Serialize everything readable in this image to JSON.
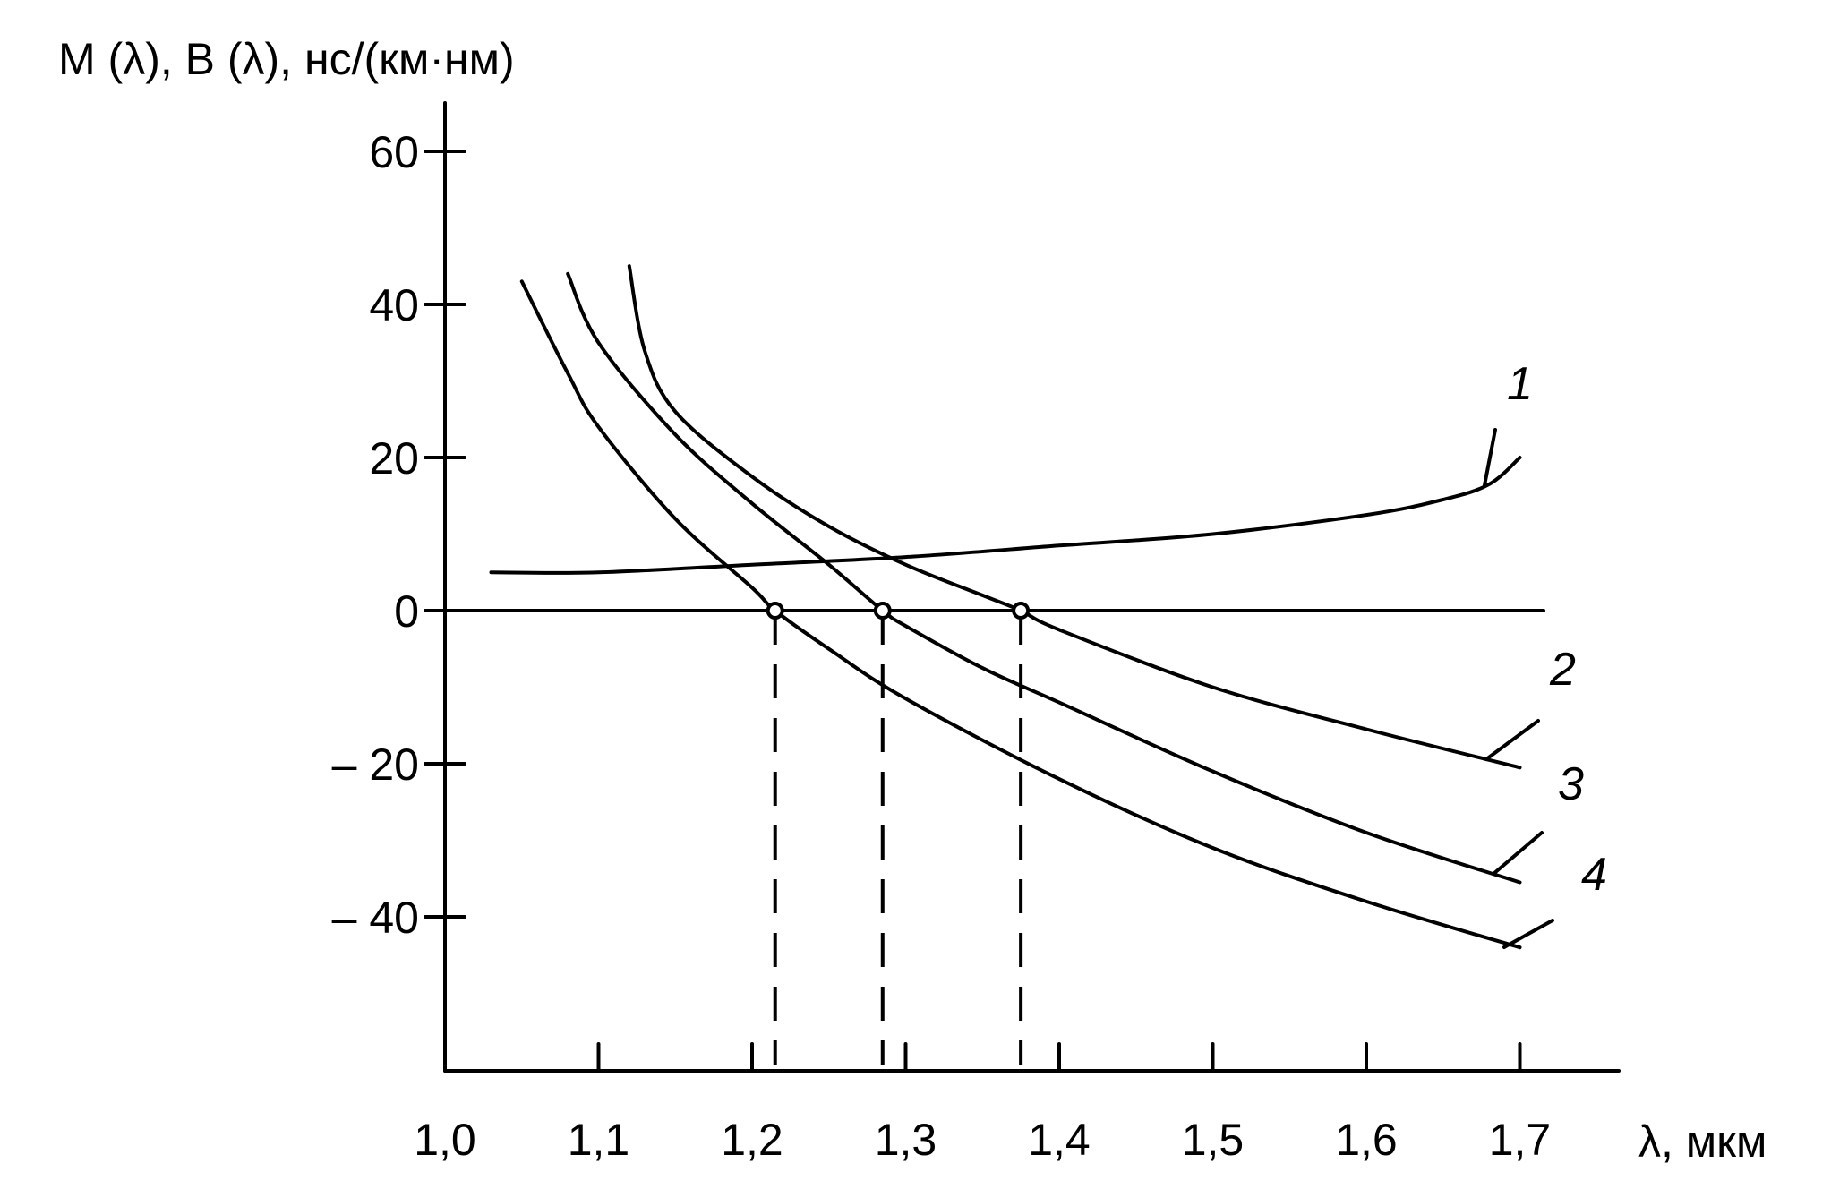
{
  "chart_data": {
    "type": "line",
    "title": "",
    "ylabel": "M (λ), B (λ), нс/(км·нм)",
    "xlabel": "λ, мкм",
    "xlim": [
      1.0,
      1.7
    ],
    "ylim": [
      -60,
      65
    ],
    "xticks": [
      1.0,
      1.1,
      1.2,
      1.3,
      1.4,
      1.5,
      1.6,
      1.7
    ],
    "xtick_labels": [
      "1,0",
      "1,1",
      "1,2",
      "1,3",
      "1,4",
      "1,5",
      "1,6",
      "1,7"
    ],
    "yticks": [
      60,
      40,
      20,
      0,
      -20,
      -40
    ],
    "ytick_labels": [
      "60",
      "40",
      "20",
      "0",
      "– 20",
      "– 40"
    ],
    "grid": false,
    "series": [
      {
        "name": "1",
        "x": [
          1.03,
          1.1,
          1.2,
          1.3,
          1.4,
          1.5,
          1.6,
          1.65,
          1.68,
          1.7
        ],
        "y": [
          5,
          5,
          6,
          7,
          8.5,
          10,
          12.5,
          14.5,
          16.5,
          20
        ]
      },
      {
        "name": "2",
        "x": [
          1.12,
          1.13,
          1.15,
          1.2,
          1.25,
          1.3,
          1.35,
          1.375,
          1.4,
          1.5,
          1.6,
          1.7
        ],
        "y": [
          45,
          34,
          26,
          17.5,
          11,
          6,
          2,
          0,
          -2.5,
          -10,
          -15.5,
          -20.5
        ]
      },
      {
        "name": "3",
        "x": [
          1.08,
          1.1,
          1.15,
          1.2,
          1.25,
          1.285,
          1.3,
          1.35,
          1.4,
          1.5,
          1.6,
          1.7
        ],
        "y": [
          44,
          35,
          23,
          14,
          6,
          0,
          -2,
          -7.5,
          -12,
          -21,
          -29,
          -35.5
        ]
      },
      {
        "name": "4",
        "x": [
          1.05,
          1.08,
          1.1,
          1.15,
          1.2,
          1.215,
          1.25,
          1.3,
          1.4,
          1.5,
          1.6,
          1.7
        ],
        "y": [
          43,
          31,
          24,
          12,
          3,
          0,
          -5,
          -11.5,
          -22,
          -31,
          -38,
          -44
        ]
      }
    ],
    "zero_crossings": [
      {
        "series": "4",
        "x": 1.215,
        "y": 0
      },
      {
        "series": "3",
        "x": 1.285,
        "y": 0
      },
      {
        "series": "2",
        "x": 1.375,
        "y": 0
      }
    ]
  }
}
